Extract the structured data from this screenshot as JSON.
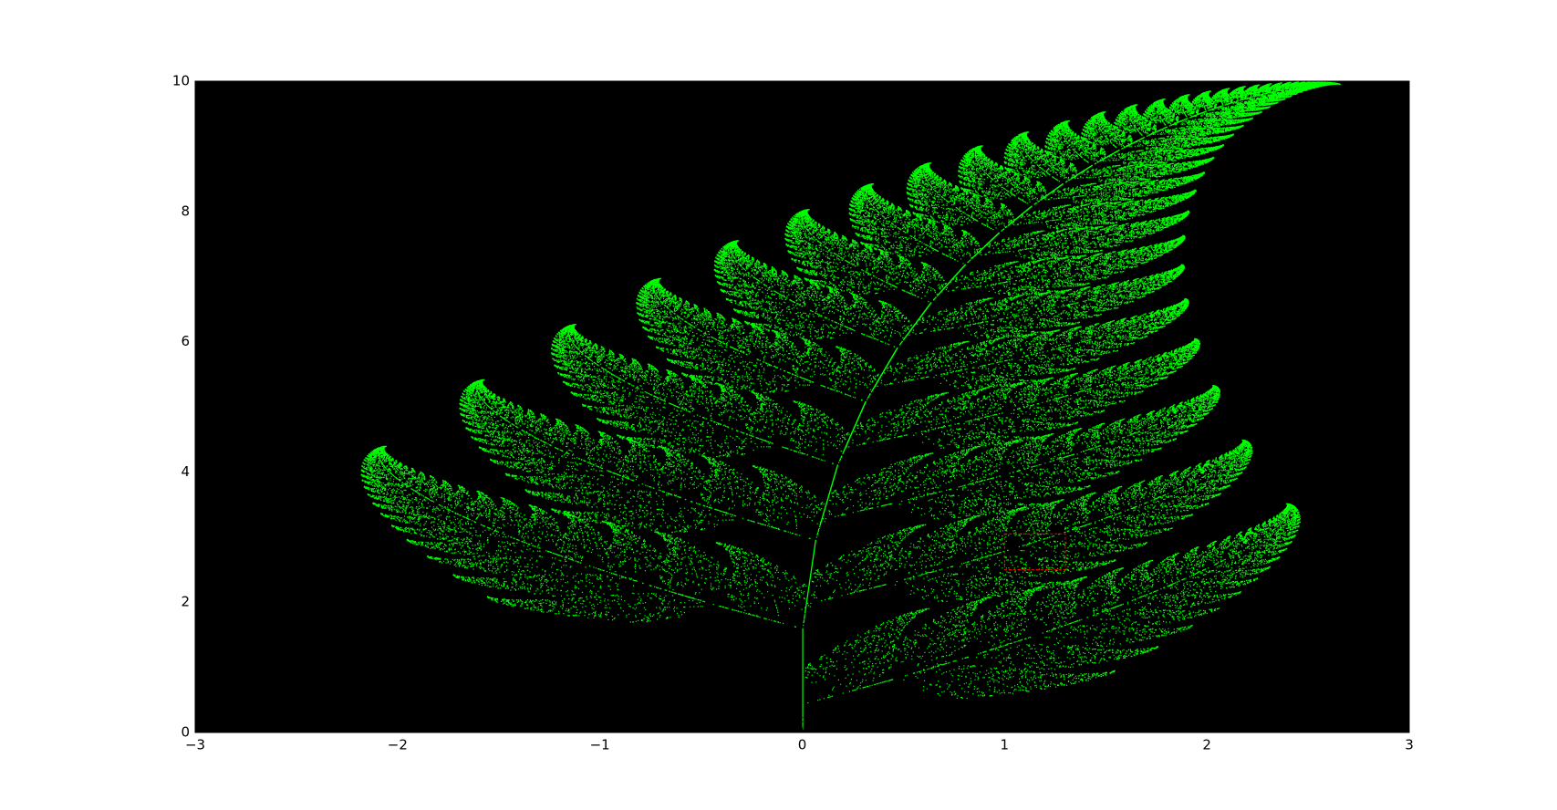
{
  "chart_data": {
    "type": "scatter",
    "color": "#00ff00",
    "background": "#000000",
    "xlim": [
      -3,
      3
    ],
    "ylim": [
      0,
      10
    ],
    "xticks": [
      {
        "value": -3,
        "label": "−3"
      },
      {
        "value": -2,
        "label": "−2"
      },
      {
        "value": -1,
        "label": "−1"
      },
      0,
      1,
      2,
      3
    ],
    "yticks": [
      0,
      2,
      4,
      6,
      8,
      10
    ],
    "highlight": {
      "x": [
        1,
        1.3
      ],
      "y": [
        2.5,
        3.05
      ],
      "color": "#ff0000"
    }
  }
}
